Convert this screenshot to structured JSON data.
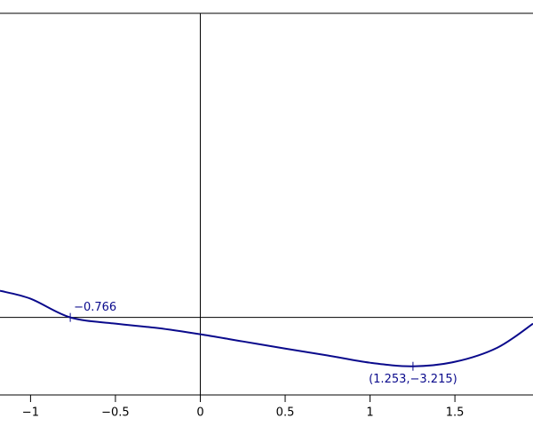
{
  "chart_data": {
    "type": "line",
    "x": [
      -1.18,
      -1,
      -0.766,
      -0.5,
      -0.25,
      0,
      0.25,
      0.5,
      0.75,
      1,
      1.253,
      1.5,
      1.75,
      1.96
    ],
    "series": [
      {
        "color": "#0a0a8c",
        "values": [
          1.75,
          1.23,
          0,
          -0.41,
          -0.7,
          -1.11,
          -1.58,
          -2.05,
          -2.5,
          -2.98,
          -3.215,
          -2.92,
          -1.99,
          -0.41
        ]
      }
    ],
    "xlim": [
      -1.18,
      1.96
    ],
    "ylim": [
      -5.1,
      20
    ],
    "xticks": [
      {
        "value": -1,
        "label": "−1"
      },
      {
        "value": -0.5,
        "label": "−0.5"
      },
      0,
      0.5,
      1,
      1.5
    ],
    "annotations": [
      {
        "x": -0.766,
        "y": 0,
        "label": "−0.766"
      },
      {
        "x": 1.253,
        "y": -3.215,
        "label": "(1.253,−3.215)"
      }
    ]
  }
}
